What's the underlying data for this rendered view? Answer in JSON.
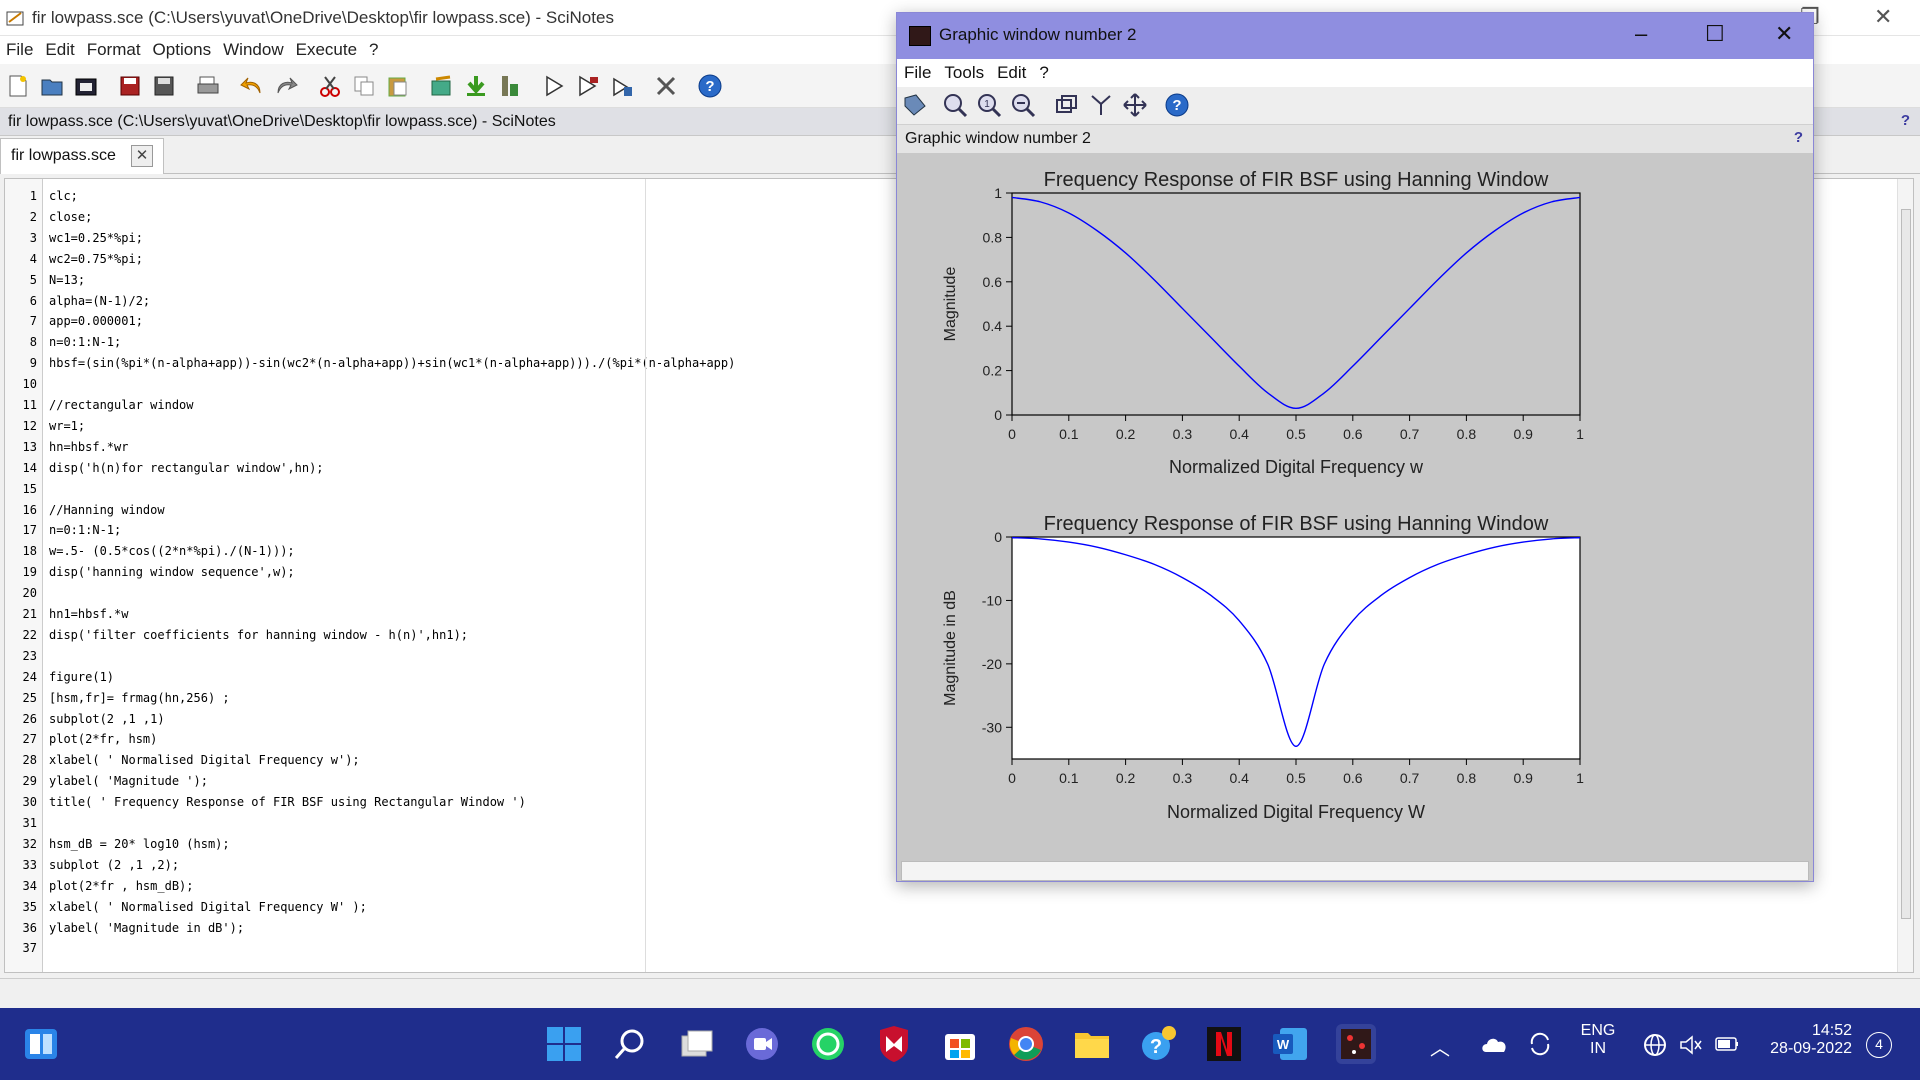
{
  "main_window": {
    "title": "fir lowpass.sce (C:\\Users\\yuvat\\OneDrive\\Desktop\\fir lowpass.sce) - SciNotes",
    "menu": [
      "File",
      "Edit",
      "Format",
      "Options",
      "Window",
      "Execute",
      "?"
    ],
    "path_bar": "fir lowpass.sce (C:\\Users\\yuvat\\OneDrive\\Desktop\\fir lowpass.sce) - SciNotes",
    "help_glyph": "?",
    "tab_label": "fir lowpass.sce",
    "tab_close": "✕"
  },
  "editor": {
    "lines": [
      {
        "n": "1",
        "text": "clc;"
      },
      {
        "n": "2",
        "text": "close;"
      },
      {
        "n": "3",
        "text": "wc1=0.25*%pi;"
      },
      {
        "n": "4",
        "text": "wc2=0.75*%pi;"
      },
      {
        "n": "5",
        "text": "N=13;"
      },
      {
        "n": "6",
        "text": "alpha=(N-1)/2;"
      },
      {
        "n": "7",
        "text": "app=0.000001;"
      },
      {
        "n": "8",
        "text": "n=0:1:N-1;"
      },
      {
        "n": "9",
        "text": "hbsf=(sin(%pi*(n-alpha+app))-sin(wc2*(n-alpha+app))+sin(wc1*(n-alpha+app)))./(%pi*(n-alpha+app)"
      },
      {
        "n": "10",
        "text": ""
      },
      {
        "n": "11",
        "text": "//rectangular window"
      },
      {
        "n": "12",
        "text": "wr=1;"
      },
      {
        "n": "13",
        "text": "hn=hbsf.*wr"
      },
      {
        "n": "14",
        "text": "disp('h(n)for rectangular window',hn);"
      },
      {
        "n": "15",
        "text": ""
      },
      {
        "n": "16",
        "text": "//Hanning window"
      },
      {
        "n": "17",
        "text": "n=0:1:N-1;"
      },
      {
        "n": "18",
        "text": "w=.5- (0.5*cos((2*n*%pi)./(N-1)));"
      },
      {
        "n": "19",
        "text": "disp('hanning window sequence',w);"
      },
      {
        "n": "20",
        "text": ""
      },
      {
        "n": "21",
        "text": "hn1=hbsf.*w"
      },
      {
        "n": "22",
        "text": "disp('filter coefficients for hanning window - h(n)',hn1);"
      },
      {
        "n": "23",
        "text": ""
      },
      {
        "n": "24",
        "text": "figure(1)"
      },
      {
        "n": "25",
        "text": "[hsm,fr]= frmag(hn,256) ;"
      },
      {
        "n": "26",
        "text": "subplot(2 ,1 ,1)"
      },
      {
        "n": "27",
        "text": "plot(2*fr, hsm)"
      },
      {
        "n": "28",
        "text": "xlabel( ' Normalised Digital Frequency w');"
      },
      {
        "n": "29",
        "text": "ylabel( 'Magnitude ');"
      },
      {
        "n": "30",
        "text": "title( ' Frequency Response of FIR BSF using Rectangular Window ')"
      },
      {
        "n": "31",
        "text": ""
      },
      {
        "n": "32",
        "text": "hsm_dB = 20* log10 (hsm);"
      },
      {
        "n": "33",
        "text": "subplot (2 ,1 ,2);"
      },
      {
        "n": "34",
        "text": "plot(2*fr , hsm_dB);"
      },
      {
        "n": "35",
        "text": "xlabel( ' Normalised Digital Frequency W' );"
      },
      {
        "n": "36",
        "text": "ylabel( 'Magnitude in dB');"
      },
      {
        "n": "37",
        "text": ""
      }
    ]
  },
  "graphic_window": {
    "title": "Graphic window number 2",
    "menu": [
      "File",
      "Tools",
      "Edit",
      "?"
    ],
    "path_bar": "Graphic window number 2",
    "help_glyph": "?"
  },
  "chart_data": [
    {
      "type": "line",
      "title": "Frequency Response of FIR BSF using Hanning Window",
      "xlabel": "Normalized Digital Frequency w",
      "ylabel": "Magnitude",
      "xlim": [
        0,
        1
      ],
      "ylim": [
        0,
        1
      ],
      "xticks": [
        "0",
        "0.1",
        "0.2",
        "0.3",
        "0.4",
        "0.5",
        "0.6",
        "0.7",
        "0.8",
        "0.9",
        "1"
      ],
      "yticks": [
        "0",
        "0.2",
        "0.4",
        "0.6",
        "0.8",
        "1"
      ],
      "series_color": "#0000ff",
      "x": [
        0,
        0.05,
        0.1,
        0.15,
        0.2,
        0.25,
        0.3,
        0.35,
        0.4,
        0.45,
        0.5,
        0.55,
        0.6,
        0.65,
        0.7,
        0.75,
        0.8,
        0.85,
        0.9,
        0.95,
        1
      ],
      "y": [
        0.98,
        0.96,
        0.91,
        0.83,
        0.73,
        0.61,
        0.48,
        0.35,
        0.22,
        0.1,
        0.03,
        0.1,
        0.22,
        0.35,
        0.48,
        0.61,
        0.73,
        0.83,
        0.91,
        0.96,
        0.98
      ]
    },
    {
      "type": "line",
      "title": "Frequency Response of FIR BSF using Hanning Window",
      "xlabel": "Normalized Digital Frequency W",
      "ylabel": "Magnitude in dB",
      "xlim": [
        0,
        1
      ],
      "ylim": [
        -35,
        0
      ],
      "xticks": [
        "0",
        "0.1",
        "0.2",
        "0.3",
        "0.4",
        "0.5",
        "0.6",
        "0.7",
        "0.8",
        "0.9",
        "1"
      ],
      "yticks": [
        "0",
        "-10",
        "-20",
        "-30"
      ],
      "series_color": "#0000ff",
      "x": [
        0,
        0.05,
        0.1,
        0.15,
        0.2,
        0.25,
        0.3,
        0.35,
        0.4,
        0.45,
        0.5,
        0.55,
        0.6,
        0.65,
        0.7,
        0.75,
        0.8,
        0.85,
        0.9,
        0.95,
        1
      ],
      "y": [
        -0.1,
        -0.3,
        -0.8,
        -1.6,
        -2.8,
        -4.3,
        -6.4,
        -9.2,
        -13.2,
        -20,
        -33,
        -20,
        -13.2,
        -9.2,
        -6.4,
        -4.3,
        -2.8,
        -1.6,
        -0.8,
        -0.3,
        -0.1
      ]
    }
  ],
  "taskbar": {
    "lang_top": "ENG",
    "lang_bottom": "IN",
    "time": "14:52",
    "date": "28-09-2022",
    "notification_count": "4",
    "accent_color": "#1f2d8c"
  }
}
